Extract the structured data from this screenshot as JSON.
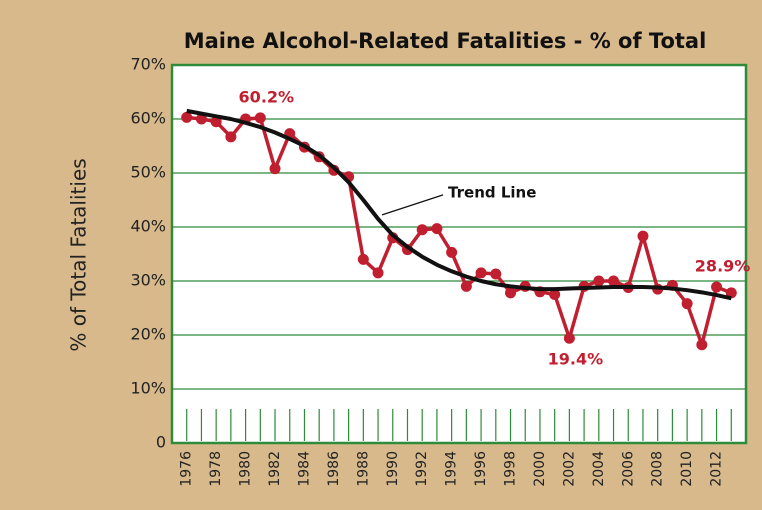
{
  "chart_data": {
    "type": "line",
    "title": "Maine Alcohol-Related Fatalities - % of Total",
    "y_label": "% of Total Fatalities",
    "x": [
      1976,
      1977,
      1978,
      1979,
      1980,
      1981,
      1982,
      1983,
      1984,
      1985,
      1986,
      1987,
      1988,
      1989,
      1990,
      1991,
      1992,
      1993,
      1994,
      1995,
      1996,
      1997,
      1998,
      1999,
      2000,
      2001,
      2002,
      2003,
      2004,
      2005,
      2006,
      2007,
      2008,
      2009,
      2010,
      2011,
      2012,
      2013
    ],
    "xlim": [
      1975,
      2014
    ],
    "xticks": [
      1976,
      1978,
      1980,
      1982,
      1984,
      1986,
      1988,
      1990,
      1992,
      1994,
      1996,
      1998,
      2000,
      2002,
      2004,
      2006,
      2008,
      2010,
      2012
    ],
    "ylim": [
      0,
      70
    ],
    "yticks": [
      0,
      {
        "value": 10,
        "label": "10%"
      },
      {
        "value": 20,
        "label": "20%"
      },
      {
        "value": 30,
        "label": "30%"
      },
      {
        "value": 40,
        "label": "40%"
      },
      {
        "value": 50,
        "label": "50%"
      },
      {
        "value": 60,
        "label": "60%"
      },
      {
        "value": 70,
        "label": "70%"
      }
    ],
    "grid": true,
    "series": [
      {
        "color": "#c01f30",
        "markers": true,
        "values": [
          60.3,
          60,
          59.5,
          56.7,
          60,
          60.2,
          50.8,
          57.3,
          54.8,
          53,
          50.5,
          49.3,
          34,
          31.5,
          38,
          35.8,
          39.5,
          39.7,
          35.3,
          29,
          31.5,
          31.3,
          27.8,
          29,
          28,
          27.5,
          19.4,
          29,
          30,
          30,
          28.8,
          38.3,
          28.5,
          29.2,
          25.8,
          18.2,
          28.9,
          27.8
        ],
        "value_labels": [
          null,
          null,
          null,
          null,
          null,
          "60.2%",
          null,
          null,
          null,
          null,
          null,
          null,
          null,
          null,
          null,
          null,
          null,
          null,
          null,
          null,
          null,
          null,
          null,
          null,
          null,
          null,
          "19.4%",
          null,
          null,
          null,
          null,
          null,
          null,
          null,
          null,
          null,
          "28.9%",
          null
        ]
      },
      {
        "name": "Trend Line",
        "color": "#111111",
        "markers": false,
        "values": [
          61.5,
          61,
          60.5,
          60,
          59.3,
          58.5,
          57.5,
          56.3,
          55,
          53.3,
          51,
          48.3,
          45,
          41.5,
          38.5,
          36.3,
          34.5,
          33,
          31.8,
          30.8,
          30,
          29.4,
          29,
          28.7,
          28.5,
          28.5,
          28.6,
          28.7,
          28.8,
          28.9,
          28.9,
          28.9,
          28.8,
          28.6,
          28.3,
          27.9,
          27.4,
          26.8
        ]
      }
    ]
  }
}
